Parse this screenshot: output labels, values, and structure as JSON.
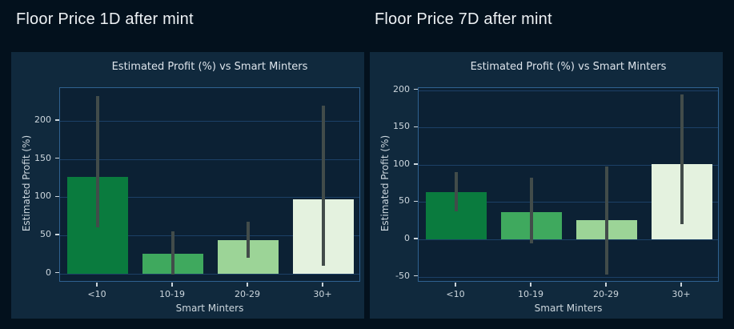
{
  "headers": [
    {
      "label": "Floor Price 1D after mint"
    },
    {
      "label": "Floor Price 7D after mint"
    }
  ],
  "colors": {
    "page_bg": "#03111d",
    "panel_bg": "#10293d",
    "plot_bg": "#0c2134",
    "spine": "#2f6190",
    "grid": "#1c4066",
    "tick_text": "#ccd6dd",
    "title_text": "#dde4eb",
    "header_text": "#eef2f5",
    "error_bar": "#424c4a",
    "bar_colors": [
      "#0a7b3e",
      "#3fa95e",
      "#9cd497",
      "#e4f2df"
    ]
  },
  "chart_data": [
    {
      "type": "bar",
      "title": "Estimated Profit (%) vs Smart Minters",
      "xlabel": "Smart Minters",
      "ylabel": "Estimated Profit (%)",
      "categories": [
        "<10",
        "10-19",
        "20-29",
        "30+"
      ],
      "values": [
        127,
        26,
        44,
        97
      ],
      "error_low": [
        60,
        -2,
        20,
        10
      ],
      "error_high": [
        232,
        55,
        68,
        220
      ],
      "yticks": [
        0,
        50,
        100,
        150,
        200
      ],
      "ylim": [
        -12,
        243
      ],
      "grid": true,
      "legend": "none"
    },
    {
      "type": "bar",
      "title": "Estimated Profit (%) vs Smart Minters",
      "xlabel": "Smart Minters",
      "ylabel": "Estimated Profit (%)",
      "categories": [
        "<10",
        "10-19",
        "20-29",
        "30+"
      ],
      "values": [
        63,
        36,
        26,
        101
      ],
      "error_low": [
        38,
        -5,
        -47,
        20
      ],
      "error_high": [
        90,
        83,
        98,
        194
      ],
      "yticks": [
        -50,
        0,
        50,
        100,
        150,
        200
      ],
      "ylim": [
        -58,
        203
      ],
      "grid": true,
      "legend": "none"
    }
  ]
}
